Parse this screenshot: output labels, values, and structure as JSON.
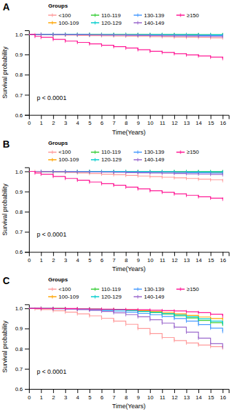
{
  "chart_data": [
    {
      "type": "step",
      "title": "A",
      "xlabel": "Time(Years)",
      "ylabel": "Survival probability",
      "annotations": [
        "p < 0.0001"
      ],
      "legend_title": "Groups",
      "legend": "top",
      "grid": false,
      "marker": "tick",
      "xlim": [
        0,
        16.5
      ],
      "ylim": [
        0.6,
        1.02
      ],
      "xticks": [
        0,
        1,
        2,
        3,
        4,
        5,
        6,
        7,
        8,
        9,
        10,
        11,
        12,
        13,
        14,
        15,
        16
      ],
      "yticks": [
        0.6,
        0.7,
        0.8,
        0.9,
        {
          "value": 1.0,
          "label": "1.0"
        }
      ],
      "series": [
        {
          "name": "<100",
          "color": "#FF9999",
          "x": [
            0,
            0.5,
            1,
            2,
            3,
            4,
            5,
            6,
            7,
            8,
            9,
            10,
            11,
            12,
            13,
            14,
            15,
            16
          ],
          "values": [
            1.0,
            0.999,
            0.998,
            0.997,
            0.996,
            0.995,
            0.994,
            0.993,
            0.992,
            0.991,
            0.99,
            0.989,
            0.988,
            0.986,
            0.985,
            0.984,
            0.983,
            0.982
          ]
        },
        {
          "name": "100-109",
          "color": "#FFA500",
          "x": [
            0,
            1,
            2,
            3,
            4,
            5,
            6,
            7,
            8,
            9,
            10,
            11,
            12,
            13,
            14,
            15,
            16
          ],
          "values": [
            1.0,
            0.9997,
            0.9994,
            0.9992,
            0.999,
            0.9988,
            0.9986,
            0.9984,
            0.9982,
            0.998,
            0.9978,
            0.9976,
            0.9974,
            0.9972,
            0.997,
            0.9968,
            0.9965
          ]
        },
        {
          "name": "110-119",
          "color": "#33CC33",
          "x": [
            0,
            1,
            2,
            3,
            4,
            5,
            6,
            7,
            8,
            9,
            10,
            11,
            12,
            13,
            14,
            15,
            16
          ],
          "values": [
            1.0,
            0.9999,
            0.9998,
            0.9997,
            0.9996,
            0.9995,
            0.9994,
            0.9993,
            0.9992,
            0.9991,
            0.999,
            0.9989,
            0.9988,
            0.9987,
            0.9986,
            0.9985,
            0.9984
          ]
        },
        {
          "name": "120-129",
          "color": "#00CCCC",
          "x": [
            0,
            1,
            2,
            3,
            4,
            5,
            6,
            7,
            8,
            9,
            10,
            11,
            12,
            13,
            14,
            15,
            16
          ],
          "values": [
            1.0,
            0.9999,
            0.9998,
            0.9997,
            0.9996,
            0.9995,
            0.9994,
            0.9993,
            0.9992,
            0.9991,
            0.999,
            0.9989,
            0.9988,
            0.9987,
            0.9986,
            0.9985,
            0.9983
          ]
        },
        {
          "name": "130-139",
          "color": "#4499FF",
          "x": [
            0,
            1,
            2,
            3,
            4,
            5,
            6,
            7,
            8,
            9,
            10,
            11,
            12,
            13,
            14,
            15,
            16
          ],
          "values": [
            1.0,
            0.9997,
            0.9994,
            0.9991,
            0.9988,
            0.9985,
            0.9981,
            0.9977,
            0.9973,
            0.9969,
            0.9965,
            0.9961,
            0.9957,
            0.9952,
            0.9948,
            0.9943,
            0.9938
          ]
        },
        {
          "name": "140-149",
          "color": "#9966CC",
          "x": [
            0,
            1,
            2,
            3,
            4,
            5,
            6,
            7,
            8,
            9,
            10,
            11,
            12,
            13,
            14,
            15,
            16
          ],
          "values": [
            1.0,
            0.9995,
            0.999,
            0.9985,
            0.998,
            0.9974,
            0.9968,
            0.9962,
            0.9955,
            0.9948,
            0.994,
            0.9932,
            0.9924,
            0.9916,
            0.9908,
            0.9899,
            0.989
          ]
        },
        {
          "name": "≥150",
          "color": "#FF1493",
          "x": [
            0,
            0.5,
            1,
            2,
            3,
            4,
            5,
            6,
            7,
            8,
            9,
            10,
            11,
            12,
            13,
            14,
            15,
            16
          ],
          "values": [
            1.0,
            0.99,
            0.985,
            0.975,
            0.967,
            0.96,
            0.953,
            0.946,
            0.939,
            0.932,
            0.924,
            0.916,
            0.91,
            0.904,
            0.898,
            0.893,
            0.887,
            0.88
          ]
        }
      ]
    },
    {
      "type": "step",
      "title": "B",
      "xlabel": "Time(Years)",
      "ylabel": "Survival probability",
      "annotations": [
        "p < 0.0001"
      ],
      "legend_title": "Groups",
      "legend": "top",
      "grid": false,
      "marker": "tick",
      "xlim": [
        0,
        16.5
      ],
      "ylim": [
        0.6,
        1.02
      ],
      "xticks": [
        0,
        1,
        2,
        3,
        4,
        5,
        6,
        7,
        8,
        9,
        10,
        11,
        12,
        13,
        14,
        15,
        16
      ],
      "yticks": [
        0.6,
        0.7,
        0.8,
        0.9,
        {
          "value": 1.0,
          "label": "1.0"
        }
      ],
      "series": [
        {
          "name": "<100",
          "color": "#FF9999",
          "x": [
            0,
            0.5,
            1,
            2,
            3,
            4,
            5,
            6,
            7,
            8,
            9,
            10,
            11,
            12,
            13,
            14,
            15,
            16
          ],
          "values": [
            1.0,
            0.999,
            0.998,
            0.996,
            0.994,
            0.992,
            0.989,
            0.986,
            0.983,
            0.98,
            0.977,
            0.974,
            0.971,
            0.968,
            0.965,
            0.961,
            0.958,
            0.954
          ]
        },
        {
          "name": "100-109",
          "color": "#FFA500",
          "x": [
            0,
            1,
            2,
            3,
            4,
            5,
            6,
            7,
            8,
            9,
            10,
            11,
            12,
            13,
            14,
            15,
            16
          ],
          "values": [
            1.0,
            0.9997,
            0.9994,
            0.9991,
            0.9988,
            0.9985,
            0.9982,
            0.9979,
            0.9976,
            0.9972,
            0.9968,
            0.9964,
            0.996,
            0.9956,
            0.9952,
            0.9948,
            0.9944
          ]
        },
        {
          "name": "110-119",
          "color": "#33CC33",
          "x": [
            0,
            1,
            2,
            3,
            4,
            5,
            6,
            7,
            8,
            9,
            10,
            11,
            12,
            13,
            14,
            15,
            16
          ],
          "values": [
            1.0,
            0.9999,
            0.9998,
            0.9997,
            0.9996,
            0.9995,
            0.9994,
            0.9993,
            0.9992,
            0.9991,
            0.999,
            0.9989,
            0.9988,
            0.9987,
            0.9986,
            0.9985,
            0.9984
          ]
        },
        {
          "name": "120-129",
          "color": "#00CCCC",
          "x": [
            0,
            1,
            2,
            3,
            4,
            5,
            6,
            7,
            8,
            9,
            10,
            11,
            12,
            13,
            14,
            15,
            16
          ],
          "values": [
            1.0,
            0.9999,
            0.9998,
            0.9997,
            0.9996,
            0.9995,
            0.9994,
            0.9993,
            0.9992,
            0.999,
            0.9988,
            0.9986,
            0.9984,
            0.9982,
            0.998,
            0.9978,
            0.9975
          ]
        },
        {
          "name": "130-139",
          "color": "#4499FF",
          "x": [
            0,
            1,
            2,
            3,
            4,
            5,
            6,
            7,
            8,
            9,
            10,
            11,
            12,
            13,
            14,
            15,
            16
          ],
          "values": [
            1.0,
            0.9997,
            0.9993,
            0.999,
            0.9986,
            0.9982,
            0.9978,
            0.9973,
            0.9968,
            0.9962,
            0.9956,
            0.995,
            0.9943,
            0.9936,
            0.9929,
            0.9921,
            0.9913
          ]
        },
        {
          "name": "140-149",
          "color": "#9966CC",
          "x": [
            0,
            1,
            2,
            3,
            4,
            5,
            6,
            7,
            8,
            9,
            10,
            11,
            12,
            13,
            14,
            15,
            16
          ],
          "values": [
            1.0,
            0.9994,
            0.9988,
            0.9981,
            0.9974,
            0.9966,
            0.9958,
            0.9949,
            0.9939,
            0.9929,
            0.9918,
            0.9906,
            0.9893,
            0.9879,
            0.9864,
            0.9848,
            0.983
          ]
        },
        {
          "name": "≥150",
          "color": "#FF1493",
          "x": [
            0,
            0.5,
            1,
            2,
            3,
            4,
            5,
            6,
            7,
            8,
            9,
            10,
            11,
            12,
            13,
            14,
            15,
            16
          ],
          "values": [
            1.0,
            0.992,
            0.986,
            0.975,
            0.965,
            0.956,
            0.947,
            0.939,
            0.931,
            0.922,
            0.913,
            0.904,
            0.896,
            0.888,
            0.881,
            0.874,
            0.867,
            0.862
          ]
        }
      ]
    },
    {
      "type": "step",
      "title": "C",
      "xlabel": "Time(Years)",
      "ylabel": "Survival probability",
      "annotations": [
        "p < 0.0001"
      ],
      "legend_title": "Groups",
      "legend": "top",
      "grid": false,
      "marker": "tick",
      "xlim": [
        0,
        16.5
      ],
      "ylim": [
        0.6,
        1.02
      ],
      "xticks": [
        0,
        1,
        2,
        3,
        4,
        5,
        6,
        7,
        8,
        9,
        10,
        11,
        12,
        13,
        14,
        15,
        16
      ],
      "yticks": [
        0.6,
        0.7,
        0.8,
        0.9,
        {
          "value": 1.0,
          "label": "1.0"
        }
      ],
      "series": [
        {
          "name": "<100",
          "color": "#FF9999",
          "x": [
            0,
            0.5,
            1,
            2,
            3,
            4,
            5,
            6,
            7,
            8,
            9,
            10,
            11,
            12,
            13,
            14,
            15,
            16
          ],
          "values": [
            1.0,
            0.997,
            0.994,
            0.988,
            0.981,
            0.973,
            0.963,
            0.951,
            0.937,
            0.921,
            0.9,
            0.875,
            0.855,
            0.84,
            0.828,
            0.818,
            0.81,
            0.803
          ]
        },
        {
          "name": "100-109",
          "color": "#FFA500",
          "x": [
            0,
            1,
            2,
            3,
            4,
            5,
            6,
            7,
            8,
            9,
            10,
            11,
            12,
            13,
            14,
            15,
            16
          ],
          "values": [
            1.0,
            0.9995,
            0.999,
            0.998,
            0.997,
            0.996,
            0.995,
            0.994,
            0.992,
            0.989,
            0.985,
            0.98,
            0.973,
            0.965,
            0.957,
            0.95,
            0.945
          ]
        },
        {
          "name": "110-119",
          "color": "#33CC33",
          "x": [
            0,
            1,
            2,
            3,
            4,
            5,
            6,
            7,
            8,
            9,
            10,
            11,
            12,
            13,
            14,
            15,
            16
          ],
          "values": [
            1.0,
            0.9996,
            0.999,
            0.998,
            0.997,
            0.996,
            0.994,
            0.992,
            0.989,
            0.985,
            0.979,
            0.972,
            0.963,
            0.952,
            0.94,
            0.929,
            0.92
          ]
        },
        {
          "name": "120-129",
          "color": "#00CCCC",
          "x": [
            0,
            1,
            2,
            3,
            4,
            5,
            6,
            7,
            8,
            9,
            10,
            11,
            12,
            13,
            14,
            15,
            16
          ],
          "values": [
            1.0,
            0.9996,
            0.999,
            0.998,
            0.997,
            0.996,
            0.994,
            0.992,
            0.989,
            0.985,
            0.98,
            0.974,
            0.967,
            0.958,
            0.948,
            0.937,
            0.926
          ]
        },
        {
          "name": "130-139",
          "color": "#4499FF",
          "x": [
            0,
            1,
            2,
            3,
            4,
            5,
            6,
            7,
            8,
            9,
            10,
            11,
            12,
            13,
            14,
            15,
            16
          ],
          "values": [
            1.0,
            0.9994,
            0.998,
            0.997,
            0.995,
            0.993,
            0.99,
            0.986,
            0.981,
            0.975,
            0.968,
            0.96,
            0.95,
            0.937,
            0.92,
            0.902,
            0.885
          ]
        },
        {
          "name": "140-149",
          "color": "#9966CC",
          "x": [
            0,
            1,
            2,
            3,
            4,
            5,
            6,
            7,
            8,
            9,
            10,
            11,
            12,
            13,
            14,
            15,
            16
          ],
          "values": [
            1.0,
            0.9993,
            0.998,
            0.996,
            0.994,
            0.99,
            0.985,
            0.978,
            0.969,
            0.958,
            0.944,
            0.927,
            0.907,
            0.882,
            0.852,
            0.825,
            0.808
          ]
        },
        {
          "name": "≥150",
          "color": "#FF1493",
          "x": [
            0,
            1,
            2,
            3,
            4,
            5,
            6,
            7,
            8,
            9,
            10,
            11,
            12,
            13,
            14,
            15,
            16
          ],
          "values": [
            1.0,
            0.9997,
            0.9993,
            0.999,
            0.998,
            0.997,
            0.996,
            0.995,
            0.994,
            0.993,
            0.991,
            0.989,
            0.987,
            0.983,
            0.979,
            0.971,
            0.961
          ]
        }
      ]
    }
  ]
}
